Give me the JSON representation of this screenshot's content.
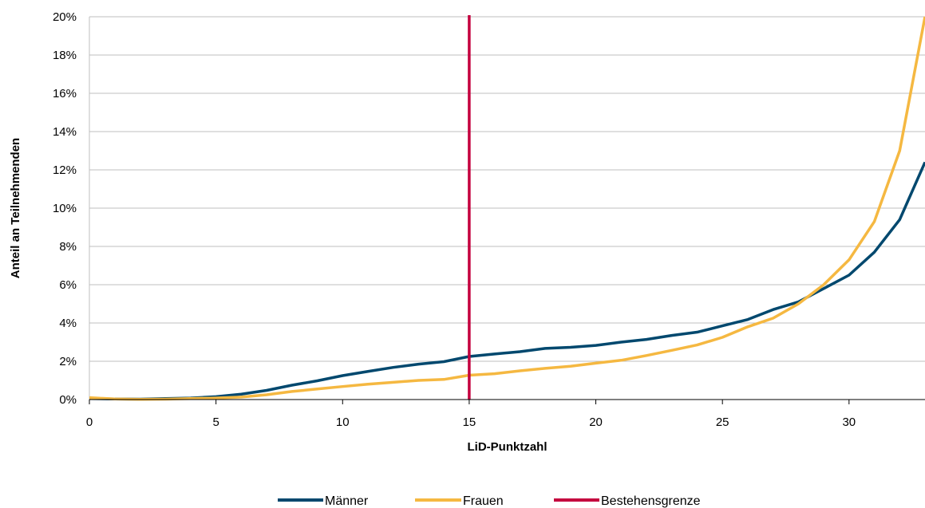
{
  "chart_data": {
    "type": "line",
    "xlabel": "LiD-Punktzahl",
    "ylabel": "Anteil an Teilnehmenden",
    "xlim": [
      0,
      33
    ],
    "ylim": [
      0,
      20
    ],
    "x_ticks": [
      0,
      5,
      10,
      15,
      20,
      25,
      30
    ],
    "y_ticks": [
      "0%",
      "2%",
      "4%",
      "6%",
      "8%",
      "10%",
      "12%",
      "14%",
      "16%",
      "18%",
      "20%"
    ],
    "grid": "horizontal",
    "legend_position": "bottom-center",
    "x": [
      0,
      1,
      2,
      3,
      4,
      5,
      6,
      7,
      8,
      9,
      10,
      11,
      12,
      13,
      14,
      15,
      16,
      17,
      18,
      19,
      20,
      21,
      22,
      23,
      24,
      25,
      26,
      27,
      28,
      29,
      30,
      31,
      32,
      33
    ],
    "series": [
      {
        "name": "Männer",
        "color": "#00486e",
        "values": [
          0.05,
          0.03,
          0.02,
          0.05,
          0.08,
          0.15,
          0.28,
          0.48,
          0.75,
          0.98,
          1.25,
          1.47,
          1.68,
          1.85,
          1.98,
          2.25,
          2.38,
          2.5,
          2.67,
          2.73,
          2.83,
          3.0,
          3.14,
          3.35,
          3.52,
          3.85,
          4.18,
          4.7,
          5.1,
          5.8,
          6.5,
          7.7,
          9.4,
          12.4
        ]
      },
      {
        "name": "Frauen",
        "color": "#f5b841",
        "values": [
          0.1,
          0.03,
          0.01,
          0.02,
          0.05,
          0.08,
          0.13,
          0.25,
          0.42,
          0.55,
          0.68,
          0.8,
          0.9,
          1.0,
          1.05,
          1.27,
          1.35,
          1.5,
          1.63,
          1.74,
          1.9,
          2.05,
          2.3,
          2.57,
          2.85,
          3.25,
          3.8,
          4.25,
          5.0,
          6.0,
          7.3,
          9.3,
          13.0,
          20.0
        ]
      }
    ],
    "vertical_line": {
      "name": "Bestehensgrenze",
      "x": 15,
      "color": "#c4003e"
    }
  }
}
